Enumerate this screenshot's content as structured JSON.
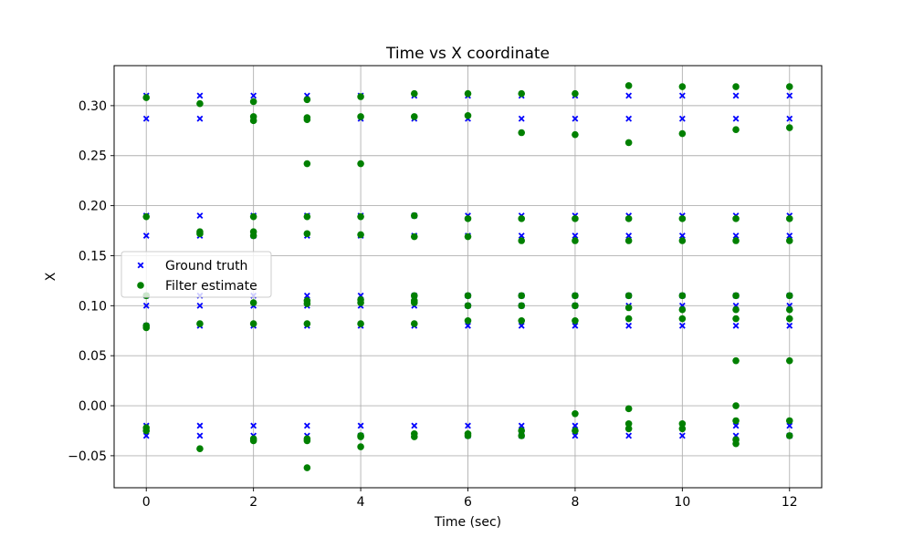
{
  "chart_data": {
    "type": "scatter",
    "title": "Time vs X coordinate",
    "xlabel": "Time (sec)",
    "ylabel": "X",
    "xlim": [
      -0.6,
      12.6
    ],
    "ylim": [
      -0.082,
      0.34
    ],
    "xticks": [
      0,
      2,
      4,
      6,
      8,
      10,
      12
    ],
    "yticks": [
      -0.05,
      0.0,
      0.05,
      0.1,
      0.15,
      0.2,
      0.25,
      0.3
    ],
    "ytick_labels": [
      "−0.05",
      "0.00",
      "0.05",
      "0.10",
      "0.15",
      "0.20",
      "0.25",
      "0.30"
    ],
    "grid": true,
    "legend_position": "center-left",
    "series": [
      {
        "name": "Ground truth",
        "marker": "x",
        "color": "#0000ff",
        "points": [
          [
            0,
            0.31
          ],
          [
            0,
            0.287
          ],
          [
            0,
            0.19
          ],
          [
            0,
            0.17
          ],
          [
            0,
            0.11
          ],
          [
            0,
            0.1
          ],
          [
            0,
            0.08
          ],
          [
            0,
            -0.02
          ],
          [
            0,
            -0.03
          ],
          [
            1,
            0.31
          ],
          [
            1,
            0.287
          ],
          [
            1,
            0.19
          ],
          [
            1,
            0.17
          ],
          [
            1,
            0.11
          ],
          [
            1,
            0.1
          ],
          [
            1,
            0.08
          ],
          [
            1,
            -0.02
          ],
          [
            1,
            -0.03
          ],
          [
            2,
            0.31
          ],
          [
            2,
            0.287
          ],
          [
            2,
            0.19
          ],
          [
            2,
            0.17
          ],
          [
            2,
            0.11
          ],
          [
            2,
            0.1
          ],
          [
            2,
            0.08
          ],
          [
            2,
            -0.02
          ],
          [
            2,
            -0.03
          ],
          [
            3,
            0.31
          ],
          [
            3,
            0.287
          ],
          [
            3,
            0.19
          ],
          [
            3,
            0.17
          ],
          [
            3,
            0.11
          ],
          [
            3,
            0.1
          ],
          [
            3,
            0.08
          ],
          [
            3,
            -0.02
          ],
          [
            3,
            -0.03
          ],
          [
            4,
            0.31
          ],
          [
            4,
            0.287
          ],
          [
            4,
            0.19
          ],
          [
            4,
            0.17
          ],
          [
            4,
            0.11
          ],
          [
            4,
            0.1
          ],
          [
            4,
            0.08
          ],
          [
            4,
            -0.02
          ],
          [
            4,
            -0.03
          ],
          [
            5,
            0.31
          ],
          [
            5,
            0.287
          ],
          [
            5,
            0.19
          ],
          [
            5,
            0.17
          ],
          [
            5,
            0.11
          ],
          [
            5,
            0.1
          ],
          [
            5,
            0.08
          ],
          [
            5,
            -0.02
          ],
          [
            5,
            -0.03
          ],
          [
            6,
            0.31
          ],
          [
            6,
            0.287
          ],
          [
            6,
            0.19
          ],
          [
            6,
            0.17
          ],
          [
            6,
            0.11
          ],
          [
            6,
            0.1
          ],
          [
            6,
            0.08
          ],
          [
            6,
            -0.02
          ],
          [
            6,
            -0.03
          ],
          [
            7,
            0.31
          ],
          [
            7,
            0.287
          ],
          [
            7,
            0.19
          ],
          [
            7,
            0.17
          ],
          [
            7,
            0.11
          ],
          [
            7,
            0.1
          ],
          [
            7,
            0.08
          ],
          [
            7,
            -0.02
          ],
          [
            7,
            -0.03
          ],
          [
            8,
            0.31
          ],
          [
            8,
            0.287
          ],
          [
            8,
            0.19
          ],
          [
            8,
            0.17
          ],
          [
            8,
            0.11
          ],
          [
            8,
            0.1
          ],
          [
            8,
            0.08
          ],
          [
            8,
            -0.02
          ],
          [
            8,
            -0.03
          ],
          [
            9,
            0.31
          ],
          [
            9,
            0.287
          ],
          [
            9,
            0.19
          ],
          [
            9,
            0.17
          ],
          [
            9,
            0.11
          ],
          [
            9,
            0.1
          ],
          [
            9,
            0.08
          ],
          [
            9,
            -0.02
          ],
          [
            9,
            -0.03
          ],
          [
            10,
            0.31
          ],
          [
            10,
            0.287
          ],
          [
            10,
            0.19
          ],
          [
            10,
            0.17
          ],
          [
            10,
            0.11
          ],
          [
            10,
            0.1
          ],
          [
            10,
            0.08
          ],
          [
            10,
            -0.02
          ],
          [
            10,
            -0.03
          ],
          [
            11,
            0.31
          ],
          [
            11,
            0.287
          ],
          [
            11,
            0.19
          ],
          [
            11,
            0.17
          ],
          [
            11,
            0.11
          ],
          [
            11,
            0.1
          ],
          [
            11,
            0.08
          ],
          [
            11,
            -0.02
          ],
          [
            11,
            -0.03
          ],
          [
            12,
            0.31
          ],
          [
            12,
            0.287
          ],
          [
            12,
            0.19
          ],
          [
            12,
            0.17
          ],
          [
            12,
            0.11
          ],
          [
            12,
            0.1
          ],
          [
            12,
            0.08
          ],
          [
            12,
            -0.02
          ],
          [
            12,
            -0.03
          ]
        ]
      },
      {
        "name": "Filter estimate",
        "marker": "o",
        "color": "#008000",
        "points": [
          [
            0,
            0.308
          ],
          [
            0,
            0.189
          ],
          [
            0,
            0.11
          ],
          [
            0,
            0.08
          ],
          [
            0,
            0.078
          ],
          [
            0,
            -0.022
          ],
          [
            0,
            -0.025
          ],
          [
            1,
            0.302
          ],
          [
            1,
            0.174
          ],
          [
            1,
            0.172
          ],
          [
            1,
            0.082
          ],
          [
            1,
            -0.043
          ],
          [
            2,
            0.304
          ],
          [
            2,
            0.289
          ],
          [
            2,
            0.285
          ],
          [
            2,
            0.189
          ],
          [
            2,
            0.174
          ],
          [
            2,
            0.17
          ],
          [
            2,
            0.103
          ],
          [
            2,
            0.082
          ],
          [
            2,
            -0.033
          ],
          [
            2,
            -0.035
          ],
          [
            3,
            0.306
          ],
          [
            3,
            0.288
          ],
          [
            3,
            0.286
          ],
          [
            3,
            0.242
          ],
          [
            3,
            0.189
          ],
          [
            3,
            0.172
          ],
          [
            3,
            0.105
          ],
          [
            3,
            0.102
          ],
          [
            3,
            0.082
          ],
          [
            3,
            -0.033
          ],
          [
            3,
            -0.035
          ],
          [
            3,
            -0.062
          ],
          [
            4,
            0.309
          ],
          [
            4,
            0.289
          ],
          [
            4,
            0.242
          ],
          [
            4,
            0.189
          ],
          [
            4,
            0.171
          ],
          [
            4,
            0.106
          ],
          [
            4,
            0.103
          ],
          [
            4,
            0.082
          ],
          [
            4,
            -0.03
          ],
          [
            4,
            -0.031
          ],
          [
            4,
            -0.041
          ],
          [
            5,
            0.312
          ],
          [
            5,
            0.289
          ],
          [
            5,
            0.19
          ],
          [
            5,
            0.169
          ],
          [
            5,
            0.11
          ],
          [
            5,
            0.105
          ],
          [
            5,
            0.103
          ],
          [
            5,
            0.082
          ],
          [
            5,
            -0.028
          ],
          [
            5,
            -0.031
          ],
          [
            6,
            0.312
          ],
          [
            6,
            0.29
          ],
          [
            6,
            0.187
          ],
          [
            6,
            0.169
          ],
          [
            6,
            0.11
          ],
          [
            6,
            0.1
          ],
          [
            6,
            0.085
          ],
          [
            6,
            -0.028
          ],
          [
            6,
            -0.03
          ],
          [
            7,
            0.312
          ],
          [
            7,
            0.273
          ],
          [
            7,
            0.187
          ],
          [
            7,
            0.165
          ],
          [
            7,
            0.11
          ],
          [
            7,
            0.1
          ],
          [
            7,
            0.085
          ],
          [
            7,
            -0.025
          ],
          [
            7,
            -0.03
          ],
          [
            8,
            0.312
          ],
          [
            8,
            0.271
          ],
          [
            8,
            0.187
          ],
          [
            8,
            0.165
          ],
          [
            8,
            0.11
          ],
          [
            8,
            0.1
          ],
          [
            8,
            0.085
          ],
          [
            8,
            -0.008
          ],
          [
            8,
            -0.025
          ],
          [
            9,
            0.32
          ],
          [
            9,
            0.263
          ],
          [
            9,
            0.187
          ],
          [
            9,
            0.165
          ],
          [
            9,
            0.11
          ],
          [
            9,
            0.098
          ],
          [
            9,
            0.087
          ],
          [
            9,
            -0.003
          ],
          [
            9,
            -0.018
          ],
          [
            9,
            -0.023
          ],
          [
            10,
            0.319
          ],
          [
            10,
            0.272
          ],
          [
            10,
            0.187
          ],
          [
            10,
            0.165
          ],
          [
            10,
            0.11
          ],
          [
            10,
            0.096
          ],
          [
            10,
            0.087
          ],
          [
            10,
            -0.018
          ],
          [
            10,
            -0.023
          ],
          [
            11,
            0.319
          ],
          [
            11,
            0.276
          ],
          [
            11,
            0.187
          ],
          [
            11,
            0.165
          ],
          [
            11,
            0.11
          ],
          [
            11,
            0.096
          ],
          [
            11,
            0.087
          ],
          [
            11,
            0.045
          ],
          [
            11,
            0.0
          ],
          [
            11,
            -0.015
          ],
          [
            11,
            -0.034
          ],
          [
            11,
            -0.038
          ],
          [
            12,
            0.319
          ],
          [
            12,
            0.278
          ],
          [
            12,
            0.187
          ],
          [
            12,
            0.165
          ],
          [
            12,
            0.11
          ],
          [
            12,
            0.096
          ],
          [
            12,
            0.087
          ],
          [
            12,
            0.045
          ],
          [
            12,
            -0.015
          ],
          [
            12,
            -0.03
          ]
        ]
      }
    ]
  }
}
